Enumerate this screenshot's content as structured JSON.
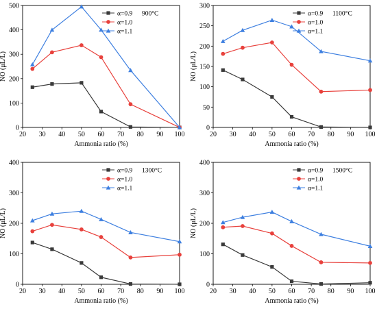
{
  "colors": {
    "series_0_9": "#3a3a3a",
    "series_1_0": "#e8413c",
    "series_1_1": "#3d7fe0"
  },
  "markers": {
    "series_0_9": "square",
    "series_1_0": "circle",
    "series_1_1": "triangle"
  },
  "chart_data": [
    {
      "type": "line",
      "temperature_label": "900°C",
      "xlabel": "Ammonia ratio (%)",
      "ylabel": "NO (μL/L)",
      "xlim": [
        20,
        100
      ],
      "ylim": [
        0,
        500
      ],
      "xticks": [
        "20",
        "30",
        "40",
        "50",
        "60",
        "70",
        "80",
        "90",
        "100"
      ],
      "yticks": [
        "0",
        "100",
        "200",
        "300",
        "400",
        "500"
      ],
      "x": [
        25,
        35,
        50,
        60,
        75,
        100
      ],
      "series": [
        {
          "name": "α=0.9",
          "values": [
            165,
            178,
            183,
            65,
            2,
            0
          ]
        },
        {
          "name": "α=1.0",
          "values": [
            240,
            308,
            337,
            288,
            95,
            0
          ]
        },
        {
          "name": "α=1.1",
          "values": [
            258,
            400,
            495,
            400,
            234,
            0
          ]
        }
      ],
      "legend": "top-right"
    },
    {
      "type": "line",
      "temperature_label": "1100°C",
      "xlabel": "Ammonia ratio (%)",
      "ylabel": "NO (μL/L)",
      "xlim": [
        20,
        100
      ],
      "ylim": [
        0,
        300
      ],
      "xticks": [
        "20",
        "30",
        "40",
        "50",
        "60",
        "70",
        "80",
        "90",
        "100"
      ],
      "yticks": [
        "0",
        "50",
        "100",
        "150",
        "200",
        "250",
        "300"
      ],
      "x": [
        25,
        35,
        50,
        60,
        75,
        100
      ],
      "series": [
        {
          "name": "α=0.9",
          "values": [
            141,
            118,
            75,
            26,
            1,
            0
          ]
        },
        {
          "name": "α=1.0",
          "values": [
            181,
            196,
            209,
            154,
            88,
            92
          ]
        },
        {
          "name": "α=1.1",
          "values": [
            212,
            239,
            264,
            248,
            187,
            164
          ]
        }
      ],
      "legend": "top-right"
    },
    {
      "type": "line",
      "temperature_label": "1300°C",
      "xlabel": "Ammonia ratio (%)",
      "ylabel": "NO (μL/L)",
      "xlim": [
        20,
        100
      ],
      "ylim": [
        0,
        400
      ],
      "xticks": [
        "20",
        "30",
        "40",
        "50",
        "60",
        "70",
        "80",
        "90",
        "100"
      ],
      "yticks": [
        "0",
        "100",
        "200",
        "300",
        "400"
      ],
      "x": [
        25,
        35,
        50,
        60,
        75,
        100
      ],
      "series": [
        {
          "name": "α=0.9",
          "values": [
            137,
            115,
            70,
            23,
            1,
            0
          ]
        },
        {
          "name": "α=1.0",
          "values": [
            174,
            195,
            180,
            155,
            88,
            97
          ]
        },
        {
          "name": "α=1.1",
          "values": [
            209,
            231,
            240,
            213,
            170,
            140
          ]
        }
      ],
      "legend": "top-right"
    },
    {
      "type": "line",
      "temperature_label": "1500°C",
      "xlabel": "Ammonia ratio (%)",
      "ylabel": "NO (μL/L)",
      "xlim": [
        20,
        100
      ],
      "ylim": [
        0,
        400
      ],
      "xticks": [
        "20",
        "30",
        "40",
        "50",
        "60",
        "70",
        "80",
        "90",
        "100"
      ],
      "yticks": [
        "0",
        "100",
        "200",
        "300",
        "400"
      ],
      "x": [
        25,
        35,
        50,
        60,
        75,
        100
      ],
      "series": [
        {
          "name": "α=0.9",
          "values": [
            131,
            96,
            57,
            10,
            1,
            5
          ]
        },
        {
          "name": "α=1.0",
          "values": [
            187,
            191,
            167,
            126,
            72,
            70
          ]
        },
        {
          "name": "α=1.1",
          "values": [
            203,
            220,
            237,
            206,
            164,
            125
          ]
        }
      ],
      "legend": "top-right"
    }
  ]
}
